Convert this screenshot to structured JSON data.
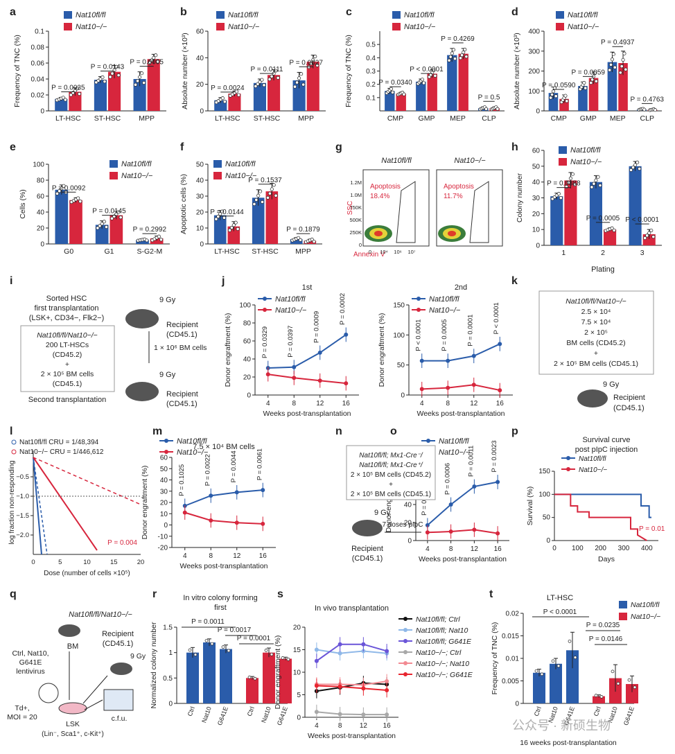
{
  "colors": {
    "wt": "#2A5CAA",
    "ko": "#D7263D",
    "axis": "#222222",
    "p": "#222222"
  },
  "legend_main": {
    "wt": "Nat10fl/fl",
    "ko": "Nat10−/−"
  },
  "chart_data": [
    {
      "panel": "a",
      "type": "bar",
      "categories": [
        "LT-HSC",
        "ST-HSC",
        "MPP"
      ],
      "ylabel": "Frequency of TNC (%)",
      "ylim": [
        0,
        0.1
      ],
      "yticks": [
        0,
        0.02,
        0.04,
        0.06,
        0.08,
        0.1
      ],
      "series": [
        {
          "name": "Nat10fl/fl",
          "values": [
            0.015,
            0.039,
            0.04
          ]
        },
        {
          "name": "Nat10−/−",
          "values": [
            0.024,
            0.049,
            0.065
          ]
        }
      ],
      "errors": [
        [
          0.002,
          0.004,
          0.009
        ],
        [
          0.005,
          0.008,
          0.006
        ]
      ],
      "pvalues": [
        "P = 0.0035",
        "P = 0.0143",
        "P = 0.0005"
      ]
    },
    {
      "panel": "b",
      "type": "bar",
      "categories": [
        "LT-HSC",
        "ST-HSC",
        "MPP"
      ],
      "ylabel": "Absolute number (×10³)",
      "ylim": [
        0,
        60
      ],
      "yticks": [
        0,
        20,
        40,
        60
      ],
      "series": [
        {
          "name": "Nat10fl/fl",
          "values": [
            8,
            21,
            23
          ]
        },
        {
          "name": "Nat10−/−",
          "values": [
            13,
            27,
            37
          ]
        }
      ],
      "errors": [
        [
          2,
          3,
          6
        ],
        [
          2,
          4,
          5
        ]
      ],
      "pvalues": [
        "P = 0.0024",
        "P = 0.0111",
        "P = 0.0027"
      ]
    },
    {
      "panel": "c",
      "type": "bar",
      "categories": [
        "CMP",
        "GMP",
        "MEP",
        "CLP"
      ],
      "ylabel": "Frequency of TNC (%)",
      "ylim": [
        0,
        0.6
      ],
      "yticks": [
        0.1,
        0.2,
        0.3,
        0.4,
        0.5
      ],
      "series": [
        {
          "name": "Nat10fl/fl",
          "values": [
            0.15,
            0.22,
            0.42,
            0.02
          ]
        },
        {
          "name": "Nat10−/−",
          "values": [
            0.13,
            0.28,
            0.43,
            0.02
          ]
        }
      ],
      "errors": [
        [
          0.02,
          0.02,
          0.05,
          0.01
        ],
        [
          0.01,
          0.03,
          0.04,
          0.01
        ]
      ],
      "pvalues": [
        "P = 0.0340",
        "P < 0.0001",
        "P = 0.4269",
        "P = 0.5"
      ]
    },
    {
      "panel": "d",
      "type": "bar",
      "categories": [
        "CMP",
        "GMP",
        "MEP",
        "CLP"
      ],
      "ylabel": "Absolute number (×10³)",
      "ylim": [
        0,
        400
      ],
      "yticks": [
        0,
        100,
        200,
        300,
        400
      ],
      "series": [
        {
          "name": "Nat10fl/fl",
          "values": [
            90,
            125,
            245,
            8
          ]
        },
        {
          "name": "Nat10−/−",
          "values": [
            60,
            165,
            240,
            6
          ]
        }
      ],
      "errors": [
        [
          30,
          20,
          50,
          3
        ],
        [
          20,
          30,
          60,
          3
        ]
      ],
      "pvalues": [
        "P = 0.0590",
        "P = 0.0059",
        "P = 0.4937",
        "P = 0.4763"
      ]
    },
    {
      "panel": "e",
      "type": "bar",
      "categories": [
        "G0",
        "G1",
        "S-G2-M"
      ],
      "ylabel": "Cells (%)",
      "ylim": [
        0,
        100
      ],
      "yticks": [
        0,
        20,
        40,
        60,
        80,
        100
      ],
      "series": [
        {
          "name": "Nat10fl/fl",
          "values": [
            68,
            24,
            5
          ]
        },
        {
          "name": "Nat10−/−",
          "values": [
            55,
            36,
            7
          ]
        }
      ],
      "errors": [
        [
          6,
          5,
          1
        ],
        [
          3,
          5,
          3
        ]
      ],
      "pvalues": [
        "P = 0.0092",
        "P = 0.0145",
        "P = 0.2992"
      ]
    },
    {
      "panel": "f",
      "type": "bar",
      "categories": [
        "LT-HSC",
        "ST-HSC",
        "MPP"
      ],
      "ylabel": "Apoptotic cells (%)",
      "ylim": [
        0,
        50
      ],
      "yticks": [
        0,
        10,
        20,
        30,
        40,
        50
      ],
      "series": [
        {
          "name": "Nat10fl/fl",
          "values": [
            18,
            29,
            3
          ]
        },
        {
          "name": "Nat10−/−",
          "values": [
            11,
            33,
            2
          ]
        }
      ],
      "errors": [
        [
          3,
          5,
          1
        ],
        [
          3,
          5,
          1
        ]
      ],
      "pvalues": [
        "P = 0.0144",
        "P = 0.1537",
        "P = 0.1879"
      ]
    },
    {
      "panel": "h",
      "type": "bar",
      "categories": [
        "1",
        "2",
        "3"
      ],
      "ylabel": "Colony number",
      "xlabel": "Plating",
      "ylim": [
        0,
        60
      ],
      "yticks": [
        0,
        10,
        20,
        30,
        40,
        50,
        60
      ],
      "series": [
        {
          "name": "Nat10fl/fl",
          "values": [
            31,
            40,
            50
          ]
        },
        {
          "name": "Nat10−/−",
          "values": [
            41,
            10,
            7
          ]
        }
      ],
      "errors": [
        [
          2,
          4,
          3
        ],
        [
          5,
          1,
          3
        ]
      ],
      "pvalues": [
        "P = 0.0388",
        "P = 0.0005",
        "P < 0.0001"
      ]
    },
    {
      "panel": "j1",
      "type": "line",
      "title": "1st",
      "x": [
        4,
        8,
        12,
        16
      ],
      "xlabel": "Weeks post-transplantation",
      "ylabel": "Donor engraftment (%)",
      "ylim": [
        0,
        100
      ],
      "yticks": [
        0,
        20,
        40,
        60,
        80,
        100
      ],
      "series": [
        {
          "name": "Nat10fl/fl",
          "values": [
            30,
            31,
            47,
            67
          ]
        },
        {
          "name": "Nat10−/−",
          "values": [
            23,
            19,
            16,
            13
          ]
        }
      ],
      "pvalues": [
        "P = 0.0329",
        "P = 0.0397",
        "P = 0.0009",
        "P = 0.0002"
      ]
    },
    {
      "panel": "j2",
      "type": "line",
      "title": "2nd",
      "x": [
        4,
        8,
        12,
        16
      ],
      "xlabel": "Weeks post-transplantation",
      "ylabel": "Donor engraftment (%)",
      "ylim": [
        0,
        150
      ],
      "yticks": [
        0,
        50,
        100,
        150
      ],
      "series": [
        {
          "name": "Nat10fl/fl",
          "values": [
            57,
            57,
            65,
            85
          ]
        },
        {
          "name": "Nat10−/−",
          "values": [
            10,
            12,
            17,
            8
          ]
        }
      ],
      "pvalues": [
        "P < 0.0001",
        "P = 0.0005",
        "P = 0.0001",
        "P < 0.0001"
      ]
    },
    {
      "panel": "m",
      "type": "line",
      "title": "7.5 × 10⁴ BM cells",
      "x": [
        4,
        8,
        12,
        16
      ],
      "xlabel": "Weeks post-transplantation",
      "ylabel": "Donor engraftment (%)",
      "ylim": [
        -20,
        60
      ],
      "yticks": [
        -20,
        -10,
        0,
        10,
        20,
        30,
        40,
        50,
        60
      ],
      "series": [
        {
          "name": "Nat10fl/fl",
          "values": [
            17,
            26,
            29,
            31
          ]
        },
        {
          "name": "Nat10−/−",
          "values": [
            11,
            4,
            2,
            1
          ]
        }
      ],
      "pvalues": [
        "P = 0.1025",
        "P = 0.0022",
        "P = 0.0044",
        "P = 0.0061"
      ]
    },
    {
      "panel": "o",
      "type": "line",
      "x": [
        4,
        8,
        12,
        16
      ],
      "xlabel": "Weeks post-transplantation",
      "ylabel": "Donor engraftment (%)",
      "ylim": [
        0,
        100
      ],
      "yticks": [
        0,
        20,
        40,
        60,
        80,
        100
      ],
      "series": [
        {
          "name": "Nat10fl/fl",
          "values": [
            17,
            40,
            60,
            65
          ]
        },
        {
          "name": "Nat10−/−",
          "values": [
            9,
            10,
            12,
            8
          ]
        }
      ],
      "pvalues": [
        "P = 0.0199",
        "P = 0.0006",
        "P = 0.0011",
        "P = 0.0023"
      ]
    },
    {
      "panel": "p",
      "type": "line",
      "title": "Survival curve",
      "subtitle": "post pIpC injection",
      "xlabel": "Days",
      "ylabel": "Survival (%)",
      "ylim": [
        0,
        150
      ],
      "yticks": [
        0,
        50,
        100,
        150
      ],
      "xticks": [
        0,
        100,
        200,
        300,
        400
      ],
      "series": [
        {
          "name": "Nat10fl/fl",
          "x": [
            0,
            375,
            375,
            410,
            410,
            420
          ],
          "values": [
            100,
            100,
            75,
            75,
            50,
            50
          ]
        },
        {
          "name": "Nat10−/−",
          "x": [
            0,
            70,
            70,
            100,
            100,
            150,
            150,
            330,
            330,
            360,
            360,
            400
          ],
          "values": [
            100,
            100,
            75,
            75,
            62,
            62,
            50,
            50,
            25,
            25,
            12,
            0
          ]
        }
      ],
      "pvalues": [
        "P = 0.01"
      ]
    },
    {
      "panel": "r",
      "type": "bar",
      "title": "In vitro colony forming",
      "subtitle": "first",
      "categories": [
        "Ctrl",
        "Nat10",
        "G641E",
        "Ctrl",
        "Nat10",
        "G641E"
      ],
      "ylabel": "Normalized colony number",
      "ylim": [
        0,
        1.5
      ],
      "yticks": [
        0,
        0.5,
        1.0,
        1.5
      ],
      "values": [
        1.0,
        1.2,
        1.07,
        0.5,
        1.0,
        0.88
      ],
      "errors": [
        0.1,
        0.07,
        0.08,
        0.03,
        0.09,
        0.03
      ],
      "pvalues": [
        "P = 0.0011",
        "P = 0.0017",
        "P = 0.0001"
      ]
    },
    {
      "panel": "s",
      "type": "line",
      "title": "In vivo transplantation",
      "x": [
        4,
        8,
        12,
        16
      ],
      "xlabel": "Weeks post-transplantation",
      "ylabel": "Donor engraftment (%)",
      "ylim": [
        0,
        20
      ],
      "yticks": [
        0,
        5,
        10,
        15,
        20
      ],
      "series": [
        {
          "name": "Nat10fl/fl; Ctrl",
          "values": [
            5.8,
            6.6,
            7.6,
            7.3
          ]
        },
        {
          "name": "Nat10fl/fl; Nat10",
          "values": [
            15,
            14.2,
            14.7,
            14.2
          ]
        },
        {
          "name": "Nat10fl/fl; G641E",
          "values": [
            12.5,
            16.2,
            16.2,
            14.7
          ]
        },
        {
          "name": "Nat10−/−; Ctrl",
          "values": [
            1.2,
            0.7,
            0.6,
            0.6
          ]
        },
        {
          "name": "Nat10−/−; Nat10",
          "values": [
            7.3,
            7.3,
            7.2,
            8.0
          ]
        },
        {
          "name": "Nat10−/−; G641E",
          "values": [
            7.0,
            6.8,
            6.4,
            6.0
          ]
        }
      ]
    },
    {
      "panel": "t",
      "type": "bar",
      "title": "LT-HSC",
      "xlabel": "16 weeks post-transplantation",
      "categories": [
        "Ctrl",
        "Nat10",
        "G641E",
        "Ctrl",
        "Nat10",
        "G641E"
      ],
      "ylabel": "Frequency of TNC (%)",
      "ylim": [
        0,
        0.02
      ],
      "yticks": [
        0,
        0.005,
        0.01,
        0.015,
        0.02
      ],
      "values": [
        0.0068,
        0.0088,
        0.0118,
        0.0016,
        0.0056,
        0.0043
      ],
      "errors": [
        0.0008,
        0.0012,
        0.004,
        0.0003,
        0.003,
        0.0018
      ],
      "pvalues": [
        "P < 0.0001",
        "P = 0.0235",
        "P = 0.0146"
      ]
    }
  ],
  "panel_g": {
    "titles": [
      "Nat10fl/fl",
      "Nat10−/−"
    ],
    "gate": "Apoptosis",
    "pcts": [
      "18.4%",
      "11.7%"
    ],
    "ylabel": "SSC",
    "xlabel": "Annexin V",
    "yticks": [
      "1.2M",
      "1.0M",
      "750K",
      "500K",
      "250K",
      "0"
    ],
    "xticks": [
      "0",
      "10⁴",
      "10⁶",
      "10⁷"
    ]
  },
  "panel_i": {
    "top": "Sorted HSC",
    "first": "first transplantation",
    "markers": "(LSK+, CD34−, Flk2−)",
    "box": [
      "Nat10fl/fl/Nat10−/−",
      "200 LT-HSCs",
      "(CD45.2)",
      "+",
      "2 × 10⁵ BM cells",
      "(CD45.1)"
    ],
    "second": "Second transplantation",
    "gy1": "9 Gy",
    "recipient": "Recipient",
    "cd": "(CD45.1)",
    "cells": "1 × 10⁶ BM cells",
    "gy2": "9 Gy"
  },
  "panel_k": {
    "box": [
      "Nat10fl/fl/Nat10−/−",
      "2.5 × 10⁴",
      "7.5 × 10⁴",
      "2 × 10⁵",
      "BM cells (CD45.2)",
      "+",
      "2 × 10⁵ BM cells (CD45.1)"
    ],
    "gy": "9 Gy",
    "recipient": "Recipient",
    "cd": "(CD45.1)"
  },
  "panel_l": {
    "legend": [
      "Nat10fl/fl CRU = 1/48,394",
      "Nat10−/− CRU = 1/446,612"
    ],
    "xlabel": "Dose (number of cells ×10⁵)",
    "ylabel": "log fraction non-responding",
    "p": "P = 0.004",
    "xticks": [
      "0",
      "5",
      "10",
      "15",
      "20"
    ],
    "yticks": [
      "−0.5",
      "−1.0",
      "−1.5",
      "−2.0"
    ]
  },
  "panel_n": {
    "box": [
      "Nat10fl/fl; Mx1-Cre⁻/",
      "Nat10fl/fl; Mx1-Cre⁺/",
      "2 × 10⁵ BM cells (CD45.2)",
      "+",
      "2 × 10⁵ BM cells (CD45.1)"
    ],
    "gy": "9 Gy",
    "pipc": "7 doses pIpC",
    "recipient": "Recipient",
    "cd": "(CD45.1)"
  },
  "panel_q": {
    "title": "Nat10fl/fl/Nat10−/−",
    "bm": "BM",
    "lenti": [
      "Ctrl, Nat10,",
      "G641E",
      "lentivirus"
    ],
    "td": [
      "Td+,",
      "MOI = 20"
    ],
    "lsk": "LSK",
    "lsk2": "(Lin⁻, Sca1⁺, c-Kit⁺)",
    "recipient": "Recipient",
    "cd": "(CD45.1)",
    "gy": "9 Gy",
    "cfu": "c.f.u."
  },
  "watermark": "公众号 · 新硕生物",
  "labels": [
    "a",
    "b",
    "c",
    "d",
    "e",
    "f",
    "g",
    "h",
    "i",
    "j",
    "k",
    "l",
    "m",
    "n",
    "o",
    "p",
    "q",
    "r",
    "s",
    "t"
  ]
}
